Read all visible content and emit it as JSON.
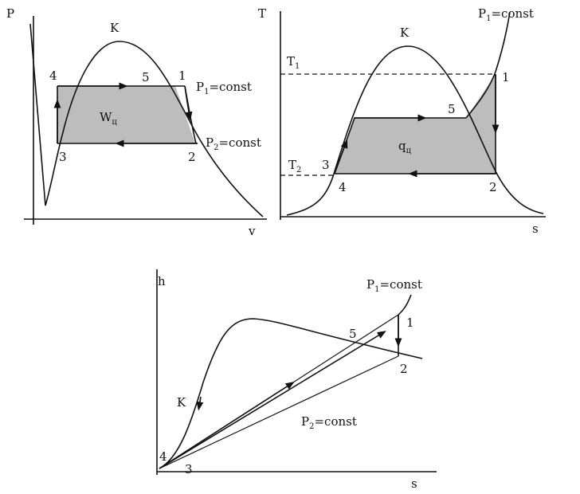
{
  "panels": [
    {
      "y_axis": "P",
      "x_axis": "v",
      "critical_point": "K",
      "points": [
        "4",
        "5",
        "1",
        "3",
        "2"
      ],
      "area_label": {
        "symbol": "W",
        "subscript": "ц"
      },
      "isobars": [
        {
          "symbol": "P",
          "subscript": "1",
          "text": "=const"
        },
        {
          "symbol": "P",
          "subscript": "2",
          "text": "=const"
        }
      ]
    },
    {
      "y_axis": "T",
      "x_axis": "s",
      "critical_point": "K",
      "points": [
        "1",
        "5",
        "3",
        "4",
        "2"
      ],
      "area_label": {
        "symbol": "q",
        "subscript": "ц"
      },
      "temperatures": [
        {
          "symbol": "T",
          "subscript": "1"
        },
        {
          "symbol": "T",
          "subscript": "2"
        }
      ],
      "isobars": [
        {
          "symbol": "P",
          "subscript": "1",
          "text": "=const"
        }
      ]
    },
    {
      "y_axis": "h",
      "x_axis": "s",
      "critical_point": "K",
      "points": [
        "1",
        "2",
        "5",
        "4",
        "3"
      ],
      "isobars": [
        {
          "symbol": "P",
          "subscript": "1",
          "text": "=const"
        },
        {
          "symbol": "P",
          "subscript": "2",
          "text": "=const"
        }
      ]
    }
  ]
}
